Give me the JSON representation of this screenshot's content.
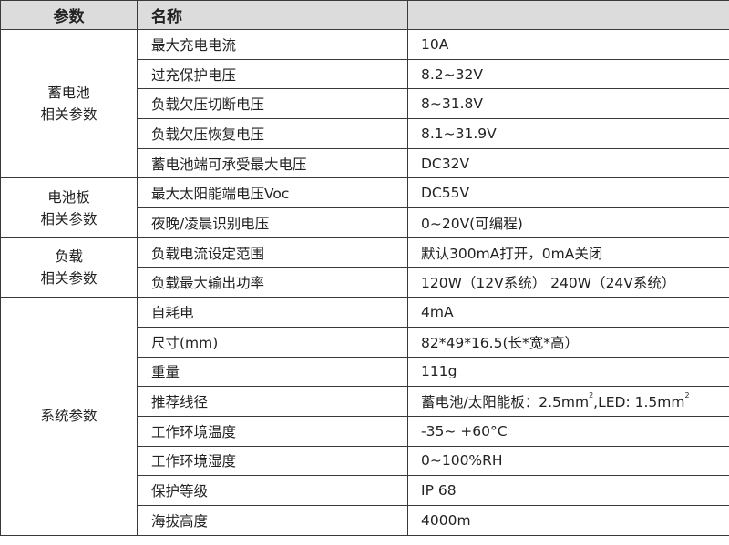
{
  "header": {
    "col1": "参数",
    "col2": "名称",
    "col3": ""
  },
  "groups": [
    {
      "label_line1": "蓄电池",
      "label_line2": "相关参数",
      "rows": [
        {
          "name": "最大充电电流",
          "value": "10A"
        },
        {
          "name": "过充保护电压",
          "value": "8.2~32V"
        },
        {
          "name": "负载欠压切断电压",
          "value": "8~31.8V"
        },
        {
          "name": "负载欠压恢复电压",
          "value": "8.1~31.9V"
        },
        {
          "name": "蓄电池端可承受最大电压",
          "value": "DC32V"
        }
      ]
    },
    {
      "label_line1": "电池板",
      "label_line2": "相关参数",
      "rows": [
        {
          "name": "最大太阳能端电压Voc",
          "value": "DC55V"
        },
        {
          "name": "夜晚/凌晨识别电压",
          "value": "0~20V(可编程)"
        }
      ]
    },
    {
      "label_line1": "负载",
      "label_line2": "相关参数",
      "rows": [
        {
          "name": "负载电流设定范围",
          "value": "默认300mA打开，0mA关闭"
        },
        {
          "name": "负载最大输出功率",
          "value": "120W（12V系统） 240W（24V系统）"
        }
      ]
    },
    {
      "label_line1": "系统参数",
      "label_line2": "",
      "rows": [
        {
          "name": "自耗电",
          "value": "4mA"
        },
        {
          "name": "尺寸(mm)",
          "value": "82*49*16.5(长*宽*高）"
        },
        {
          "name": "重量",
          "value": "111g"
        },
        {
          "name": "推荐线径",
          "value_a": "蓄电池/太阳能板：2.5mm",
          "sup_a": "2",
          "value_b": ",LED: 1.5mm",
          "sup_b": "2"
        },
        {
          "name": "工作环境温度",
          "value": "-35~ +60°C"
        },
        {
          "name": "工作环境湿度",
          "value": "0~100%RH"
        },
        {
          "name": "保护等级",
          "value": "IP 68"
        },
        {
          "name": "海拔高度",
          "value": "4000m"
        }
      ]
    }
  ]
}
